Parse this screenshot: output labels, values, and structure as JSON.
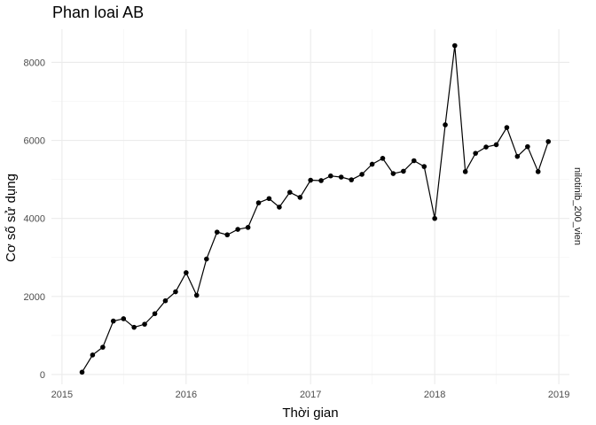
{
  "chart_data": {
    "type": "line",
    "title": "Phan loai AB",
    "xlabel": "Thời gian",
    "ylabel": "Cơ số sử dụng",
    "facet_label": "nilotinib_200_vien",
    "x_ticks": [
      "2015",
      "2016",
      "2017",
      "2018",
      "2019"
    ],
    "y_ticks": [
      "0",
      "2000",
      "4000",
      "6000",
      "8000"
    ],
    "xlim": [
      "2014-12-01",
      "2019-02-01"
    ],
    "ylim": [
      -250,
      8850
    ],
    "grid": true,
    "legend": "none",
    "series": [
      {
        "color": "#000000",
        "x": [
          "2015-03",
          "2015-04",
          "2015-05",
          "2015-06",
          "2015-07",
          "2015-08",
          "2015-09",
          "2015-10",
          "2015-11",
          "2015-12",
          "2016-01",
          "2016-02",
          "2016-03",
          "2016-04",
          "2016-05",
          "2016-06",
          "2016-07",
          "2016-08",
          "2016-09",
          "2016-10",
          "2016-11",
          "2016-12",
          "2017-01",
          "2017-02",
          "2017-03",
          "2017-04",
          "2017-05",
          "2017-06",
          "2017-07",
          "2017-08",
          "2017-09",
          "2017-10",
          "2017-11",
          "2017-12",
          "2018-01",
          "2018-02",
          "2018-03",
          "2018-04",
          "2018-05",
          "2018-06",
          "2018-07",
          "2018-08",
          "2018-09",
          "2018-10",
          "2018-11",
          "2018-12"
        ],
        "values": [
          60,
          500,
          700,
          1370,
          1430,
          1210,
          1290,
          1560,
          1890,
          2120,
          2610,
          2030,
          2960,
          3650,
          3580,
          3720,
          3770,
          4400,
          4510,
          4290,
          4670,
          4540,
          4980,
          4970,
          5090,
          5060,
          4990,
          5130,
          5390,
          5540,
          5150,
          5210,
          5480,
          5330,
          4000,
          6400,
          8430,
          5200,
          5670,
          5830,
          5890,
          6330,
          5590,
          5840,
          5200,
          5970
        ]
      }
    ]
  }
}
